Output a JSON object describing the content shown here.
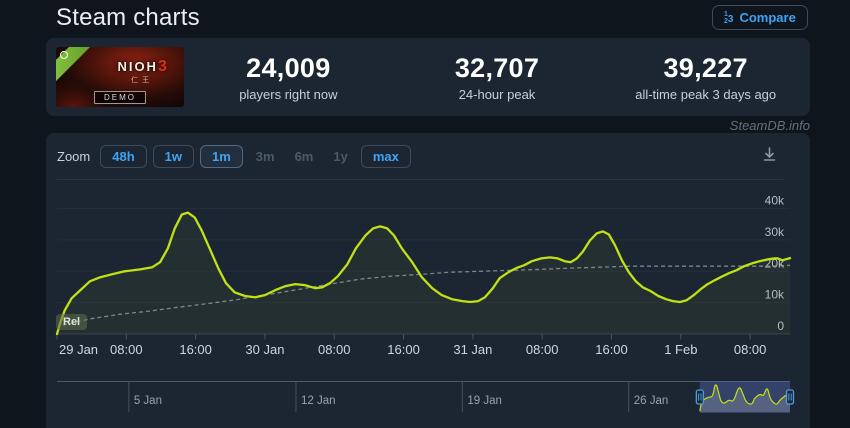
{
  "header": {
    "title": "Steam charts",
    "compare_label": "Compare",
    "compare_icon_digits": [
      "1",
      "2",
      "3"
    ]
  },
  "game": {
    "title": "NIOH",
    "kanji": "仁王",
    "number": "3",
    "badge": "DEMO"
  },
  "stats": {
    "current": {
      "value": "24,009",
      "label": "players right now"
    },
    "peak24": {
      "value": "32,707",
      "label": "24-hour peak"
    },
    "alltime": {
      "value": "39,227",
      "label": "all-time peak 3 days ago"
    }
  },
  "watermark": "SteamDB.info",
  "toolbar": {
    "zoom_label": "Zoom",
    "buttons": [
      {
        "label": "48h",
        "state": "enabled"
      },
      {
        "label": "1w",
        "state": "enabled"
      },
      {
        "label": "1m",
        "state": "active"
      },
      {
        "label": "3m",
        "state": "disabled"
      },
      {
        "label": "6m",
        "state": "disabled"
      },
      {
        "label": "1y",
        "state": "disabled"
      },
      {
        "label": "max",
        "state": "enabled"
      }
    ]
  },
  "chart_data": {
    "type": "line",
    "x_unit": "hours since 29 Jan 00:00",
    "x_range": [
      0,
      84.6
    ],
    "y_range": [
      0,
      40000
    ],
    "grid": true,
    "y_ticks": [
      {
        "v": 0,
        "label": "0"
      },
      {
        "v": 10000,
        "label": "10k"
      },
      {
        "v": 20000,
        "label": "20k"
      },
      {
        "v": 30000,
        "label": "30k"
      },
      {
        "v": 40000,
        "label": "40k"
      }
    ],
    "x_ticks": [
      {
        "v": 0,
        "label": "29 Jan"
      },
      {
        "v": 8,
        "label": "08:00"
      },
      {
        "v": 16,
        "label": "16:00"
      },
      {
        "v": 24,
        "label": "30 Jan"
      },
      {
        "v": 32,
        "label": "08:00"
      },
      {
        "v": 40,
        "label": "16:00"
      },
      {
        "v": 48,
        "label": "31 Jan"
      },
      {
        "v": 56,
        "label": "08:00"
      },
      {
        "v": 64,
        "label": "16:00"
      },
      {
        "v": 72,
        "label": "1 Feb"
      },
      {
        "v": 80,
        "label": "08:00"
      }
    ],
    "release_marker": {
      "label": "Rel",
      "x": 0
    },
    "series": [
      {
        "name": "players",
        "color": "#c2e114",
        "style": "solid",
        "points": [
          [
            0,
            0
          ],
          [
            0.4,
            3800
          ],
          [
            0.9,
            7600
          ],
          [
            1.7,
            11400
          ],
          [
            2.7,
            14000
          ],
          [
            3.8,
            16800
          ],
          [
            5,
            18100
          ],
          [
            6.3,
            19000
          ],
          [
            7.8,
            20000
          ],
          [
            9.6,
            20600
          ],
          [
            11,
            21300
          ],
          [
            11.9,
            22900
          ],
          [
            12.8,
            27300
          ],
          [
            13.6,
            33700
          ],
          [
            14.4,
            38100
          ],
          [
            15.1,
            38700
          ],
          [
            15.9,
            37100
          ],
          [
            16.7,
            33000
          ],
          [
            17.7,
            26700
          ],
          [
            18.6,
            21000
          ],
          [
            19.5,
            16200
          ],
          [
            20.5,
            13300
          ],
          [
            21.7,
            12100
          ],
          [
            22.9,
            11700
          ],
          [
            24,
            12400
          ],
          [
            25.2,
            14000
          ],
          [
            26.3,
            15200
          ],
          [
            27.5,
            15900
          ],
          [
            28.6,
            15600
          ],
          [
            29.8,
            14600
          ],
          [
            30.6,
            14900
          ],
          [
            31.5,
            16200
          ],
          [
            32.4,
            18400
          ],
          [
            33.5,
            22200
          ],
          [
            34.5,
            27300
          ],
          [
            35.6,
            31400
          ],
          [
            36.5,
            33700
          ],
          [
            37.3,
            34300
          ],
          [
            38.1,
            33700
          ],
          [
            38.9,
            31400
          ],
          [
            39.8,
            27300
          ],
          [
            41,
            22900
          ],
          [
            42.1,
            18100
          ],
          [
            43.3,
            14600
          ],
          [
            44.4,
            12400
          ],
          [
            45.6,
            11100
          ],
          [
            46.8,
            10500
          ],
          [
            47.7,
            10200
          ],
          [
            48.6,
            10500
          ],
          [
            49.4,
            11700
          ],
          [
            50.3,
            14600
          ],
          [
            51.1,
            17800
          ],
          [
            52.1,
            19700
          ],
          [
            53,
            21000
          ],
          [
            53.9,
            21900
          ],
          [
            54.8,
            23200
          ],
          [
            55.9,
            24100
          ],
          [
            56.9,
            24400
          ],
          [
            57.8,
            24100
          ],
          [
            58.6,
            23200
          ],
          [
            59.3,
            22900
          ],
          [
            60,
            24100
          ],
          [
            60.7,
            26300
          ],
          [
            61.5,
            29800
          ],
          [
            62.3,
            32100
          ],
          [
            63,
            32700
          ],
          [
            63.7,
            31700
          ],
          [
            64.4,
            28300
          ],
          [
            65.2,
            23500
          ],
          [
            66,
            19700
          ],
          [
            66.8,
            16800
          ],
          [
            67.6,
            14900
          ],
          [
            68.5,
            13700
          ],
          [
            69.4,
            12100
          ],
          [
            70.3,
            11100
          ],
          [
            71.1,
            10500
          ],
          [
            71.9,
            10200
          ],
          [
            72.7,
            10800
          ],
          [
            73.5,
            12400
          ],
          [
            74.3,
            14300
          ],
          [
            75.1,
            15900
          ],
          [
            75.9,
            17100
          ],
          [
            76.8,
            18400
          ],
          [
            77.6,
            19400
          ],
          [
            78.4,
            20300
          ],
          [
            79.3,
            21600
          ],
          [
            80.2,
            22500
          ],
          [
            81.1,
            23200
          ],
          [
            82.1,
            23800
          ],
          [
            82.8,
            24100
          ],
          [
            83.2,
            24100
          ],
          [
            83.7,
            23500
          ],
          [
            84.1,
            23800
          ],
          [
            84.6,
            24200
          ]
        ]
      },
      {
        "name": "trend",
        "color": "#8b95a1",
        "style": "dashed",
        "points": [
          [
            0.7,
            2900
          ],
          [
            3.8,
            4800
          ],
          [
            7.3,
            6300
          ],
          [
            10.7,
            7300
          ],
          [
            14.2,
            8600
          ],
          [
            17.7,
            9800
          ],
          [
            21.1,
            11100
          ],
          [
            24.6,
            12700
          ],
          [
            28.1,
            14300
          ],
          [
            31.5,
            15900
          ],
          [
            35,
            17500
          ],
          [
            38.4,
            18400
          ],
          [
            41.9,
            19000
          ],
          [
            45.4,
            19700
          ],
          [
            48.8,
            20000
          ],
          [
            52.3,
            20300
          ],
          [
            55.8,
            20600
          ],
          [
            59.2,
            21000
          ],
          [
            62.7,
            21300
          ],
          [
            66.1,
            21600
          ],
          [
            69.6,
            21600
          ],
          [
            74.2,
            21600
          ],
          [
            78.8,
            21600
          ],
          [
            82.3,
            21600
          ],
          [
            84.6,
            21900
          ]
        ]
      }
    ],
    "navigator": {
      "labels": [
        {
          "pos": 0.098,
          "label": "5 Jan"
        },
        {
          "pos": 0.326,
          "label": "12 Jan"
        },
        {
          "pos": 0.553,
          "label": "19 Jan"
        },
        {
          "pos": 0.78,
          "label": "26 Jan"
        }
      ],
      "selection": {
        "start": 0.877,
        "end": 1.0
      }
    }
  },
  "colors": {
    "accent_blue": "#3fa3f5",
    "line_green": "#c2e114",
    "panel_bg": "#1c2632",
    "page_bg": "#0f151c"
  }
}
